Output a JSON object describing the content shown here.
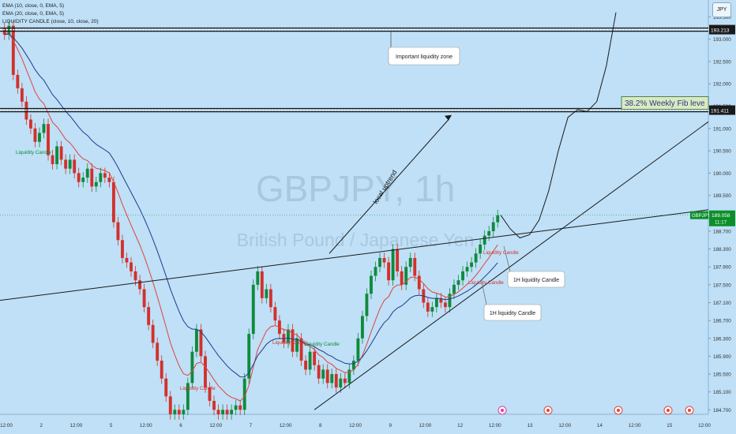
{
  "window": {
    "legend": [
      "EMA (10, close, 0, EMA, 5)",
      "EMA (20, close, 0, EMA, 5)",
      "LIQUIDITY CANDLE (close, 10, close, 20)"
    ],
    "currency": "JPY",
    "watermark_symbol": "GBPJPY, 1h",
    "watermark_name": "British Pound / Japanese Yen"
  },
  "chart_data": {
    "type": "candlestick",
    "symbol": "GBPJPY",
    "timeframe": "1h",
    "y_axis": {
      "ticks": [
        193.5,
        193.0,
        192.5,
        192.0,
        191.5,
        191.0,
        190.5,
        190.0,
        189.5,
        189.0,
        188.7,
        188.3,
        187.9,
        187.5,
        187.1,
        186.7,
        186.3,
        185.9,
        185.5,
        185.1,
        184.7
      ],
      "tick_labels": [
        "193.500",
        "193.000",
        "192.500",
        "192.000",
        "191.500",
        "191.000",
        "190.500",
        "190.000",
        "189.500",
        "189.000",
        "188.700",
        "188.300",
        "187.900",
        "187.500",
        "187.100",
        "186.700",
        "186.300",
        "185.900",
        "185.500",
        "185.100",
        "184.700"
      ],
      "range": [
        184.6,
        193.7
      ]
    },
    "x_axis": {
      "ticks": [
        "12:00",
        "2",
        "12:00",
        "5",
        "12:00",
        "6",
        "12:00",
        "7",
        "12:00",
        "8",
        "12:00",
        "9",
        "12:00",
        "12",
        "12:00",
        "13",
        "12:00",
        "14",
        "12:00",
        "15",
        "12:00"
      ]
    },
    "price_levels": [
      {
        "price": 193.213,
        "label": "193.213",
        "annotation": "Important liquidity zone"
      },
      {
        "price": 191.411,
        "label": "191.411",
        "annotation": "38.2% Weekly Fib leve"
      }
    ],
    "current_price": {
      "symbol": "GBPJPY",
      "price": "189.058",
      "countdown": "11:17",
      "value": 189.058
    },
    "annotations": {
      "trend": "local uptrend",
      "callouts": [
        "1H liquidity Candle",
        "1H liquidity Candle"
      ],
      "candle_markers": [
        "Liquidity Candle",
        "Liquidity Candle",
        "Liquidity Candle",
        "Liquidity Candle",
        "Liquidity Candle",
        "Liquidity Candle"
      ]
    },
    "close_path": [
      193.1,
      193.3,
      192.2,
      191.9,
      191.6,
      191.2,
      191.0,
      190.7,
      190.9,
      191.1,
      190.4,
      190.2,
      190.6,
      190.3,
      190.1,
      190.3,
      190.0,
      189.8,
      189.9,
      190.1,
      189.7,
      189.8,
      190.0,
      189.9,
      189.8,
      188.9,
      188.5,
      188.1,
      188.0,
      187.8,
      187.6,
      187.4,
      187.0,
      186.6,
      186.2,
      185.8,
      185.4,
      185.0,
      184.6,
      184.7,
      184.6,
      184.7,
      185.3,
      186.0,
      186.5,
      185.9,
      185.2,
      184.9,
      184.7,
      184.6,
      184.7,
      184.6,
      184.7,
      184.8,
      184.7,
      185.4,
      186.4,
      187.5,
      187.8,
      187.2,
      187.4,
      187.0,
      186.7,
      186.4,
      186.2,
      186.5,
      186.0,
      186.3,
      185.8,
      185.6,
      186.0,
      185.7,
      185.4,
      185.6,
      185.3,
      185.5,
      185.2,
      185.4,
      185.3,
      185.6,
      185.8,
      186.3,
      186.8,
      187.3,
      187.7,
      187.9,
      188.1,
      188.0,
      187.6,
      188.3,
      187.8,
      187.5,
      187.9,
      188.1,
      187.7,
      187.4,
      187.1,
      186.9,
      187.0,
      187.2,
      187.1,
      187.0,
      187.3,
      187.5,
      187.6,
      187.8,
      187.9,
      188.0,
      188.2,
      188.4,
      188.6,
      188.7,
      188.9,
      189.058
    ],
    "projection_path": [
      189.06,
      188.75,
      188.55,
      188.62,
      188.95,
      189.6,
      190.5,
      191.25,
      191.42,
      191.38,
      191.6,
      192.4,
      193.6
    ],
    "ema_fast_label": "EMA (10, close, 0, EMA, 5)",
    "ema_slow_label": "EMA (20, close, 0, EMA, 5)"
  },
  "colors": {
    "background": "#bfe0f7",
    "bull": "#0f8a3c",
    "bear": "#d2312b",
    "ema_fast": "#e0443c",
    "ema_slow": "#1d3c8a",
    "line": "#1a1a1a",
    "current_price": "#0c8f2a"
  }
}
